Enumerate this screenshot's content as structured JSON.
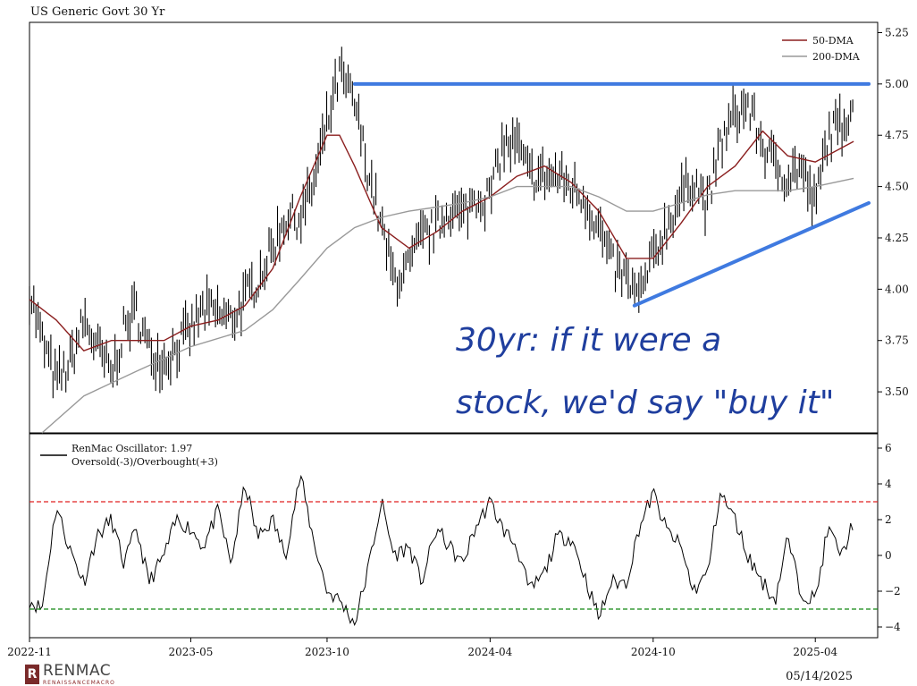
{
  "header": {
    "title": "US Generic Govt 30 Yr"
  },
  "footer": {
    "date": "05/14/2025",
    "logo_name": "RENMAC",
    "logo_sub": "RENAISSANCEMACRO",
    "logo_mark": "R"
  },
  "annotation": {
    "line1": "30yr: if it were a",
    "line2": "stock, we'd say \"buy it\""
  },
  "colors": {
    "price": "#000000",
    "dma50": "#8b1f1f",
    "dma200": "#999999",
    "resistance": "#3f7ae0",
    "support": "#3f7ae0",
    "oscillator": "#000000",
    "overbought": "#e02020",
    "oversold": "#118811",
    "annotation": "#1f3e9e"
  },
  "chart_data": [
    {
      "type": "line",
      "title": "US Generic Govt 30 Yr",
      "y_axis_side": "right",
      "ylim": [
        3.3,
        5.3
      ],
      "yticks": [
        "3.50",
        "3.75",
        "4.00",
        "4.25",
        "4.50",
        "4.75",
        "5.00",
        "5.25"
      ],
      "ytick_values": [
        3.5,
        3.75,
        4.0,
        4.25,
        4.5,
        4.75,
        5.0,
        5.25
      ],
      "legend": {
        "position": "top-right",
        "entries": [
          "50-DMA",
          "200-DMA"
        ]
      },
      "series": [
        {
          "style": "daily-bars",
          "dates": [
            "2022-11-01",
            "2022-11-15",
            "2022-12-01",
            "2022-12-15",
            "2023-01-01",
            "2023-01-15",
            "2023-02-01",
            "2023-02-15",
            "2023-03-01",
            "2023-03-15",
            "2023-04-01",
            "2023-04-15",
            "2023-05-01",
            "2023-05-15",
            "2023-06-01",
            "2023-06-15",
            "2023-07-01",
            "2023-07-15",
            "2023-08-01",
            "2023-08-15",
            "2023-09-01",
            "2023-09-15",
            "2023-10-01",
            "2023-10-15",
            "2023-11-01",
            "2023-11-15",
            "2023-12-01",
            "2023-12-15",
            "2024-01-01",
            "2024-01-15",
            "2024-02-01",
            "2024-02-15",
            "2024-03-01",
            "2024-03-15",
            "2024-04-01",
            "2024-04-15",
            "2024-05-01",
            "2024-05-15",
            "2024-06-01",
            "2024-06-15",
            "2024-07-01",
            "2024-07-15",
            "2024-08-01",
            "2024-08-15",
            "2024-09-01",
            "2024-09-15",
            "2024-10-01",
            "2024-10-15",
            "2024-11-01",
            "2024-11-15",
            "2024-12-01",
            "2024-12-15",
            "2025-01-01",
            "2025-01-15",
            "2025-02-01",
            "2025-02-15",
            "2025-03-01",
            "2025-03-15",
            "2025-04-01",
            "2025-04-15",
            "2025-05-01",
            "2025-05-14"
          ],
          "values": [
            4.0,
            3.75,
            3.55,
            3.62,
            3.85,
            3.72,
            3.58,
            3.8,
            3.9,
            3.7,
            3.65,
            3.72,
            3.8,
            3.9,
            3.88,
            3.85,
            3.95,
            4.05,
            4.2,
            4.35,
            4.35,
            4.5,
            4.8,
            5.05,
            4.9,
            4.6,
            4.3,
            4.05,
            4.1,
            4.25,
            4.3,
            4.4,
            4.35,
            4.45,
            4.45,
            4.7,
            4.7,
            4.55,
            4.55,
            4.55,
            4.5,
            4.45,
            4.3,
            4.12,
            4.05,
            3.95,
            4.15,
            4.3,
            4.45,
            4.55,
            4.4,
            4.7,
            4.85,
            4.9,
            4.7,
            4.6,
            4.55,
            4.6,
            4.4,
            4.75,
            4.8,
            4.92
          ]
        },
        {
          "name": "50-DMA",
          "dates": [
            "2022-11-01",
            "2022-12-01",
            "2023-01-01",
            "2023-02-01",
            "2023-03-01",
            "2023-04-01",
            "2023-05-01",
            "2023-06-01",
            "2023-07-01",
            "2023-08-01",
            "2023-09-01",
            "2023-10-01",
            "2023-10-15",
            "2023-11-01",
            "2023-12-01",
            "2024-01-01",
            "2024-02-01",
            "2024-03-01",
            "2024-04-01",
            "2024-05-01",
            "2024-06-01",
            "2024-07-01",
            "2024-08-01",
            "2024-09-01",
            "2024-10-01",
            "2024-11-01",
            "2024-12-01",
            "2025-01-01",
            "2025-02-01",
            "2025-03-01",
            "2025-04-01",
            "2025-05-14"
          ],
          "values": [
            3.95,
            3.85,
            3.7,
            3.75,
            3.75,
            3.75,
            3.82,
            3.85,
            3.92,
            4.1,
            4.45,
            4.75,
            4.75,
            4.6,
            4.3,
            4.2,
            4.28,
            4.38,
            4.45,
            4.55,
            4.6,
            4.52,
            4.38,
            4.15,
            4.15,
            4.32,
            4.5,
            4.6,
            4.77,
            4.65,
            4.62,
            4.72
          ]
        },
        {
          "name": "200-DMA",
          "dates": [
            "2022-11-15",
            "2023-01-01",
            "2023-03-01",
            "2023-05-01",
            "2023-07-01",
            "2023-08-01",
            "2023-09-01",
            "2023-10-01",
            "2023-11-01",
            "2023-12-01",
            "2024-01-01",
            "2024-02-01",
            "2024-03-01",
            "2024-04-01",
            "2024-05-01",
            "2024-06-01",
            "2024-07-01",
            "2024-08-01",
            "2024-09-01",
            "2024-10-01",
            "2024-11-01",
            "2024-12-01",
            "2025-01-01",
            "2025-02-01",
            "2025-03-01",
            "2025-04-01",
            "2025-05-14"
          ],
          "values": [
            3.3,
            3.48,
            3.6,
            3.72,
            3.8,
            3.9,
            4.05,
            4.2,
            4.3,
            4.35,
            4.38,
            4.4,
            4.42,
            4.45,
            4.5,
            4.5,
            4.5,
            4.45,
            4.38,
            4.38,
            4.42,
            4.46,
            4.48,
            4.48,
            4.48,
            4.5,
            4.54
          ]
        }
      ],
      "annotations": [
        {
          "kind": "resistance",
          "from": [
            "2023-11-01",
            5.0
          ],
          "to": [
            "2025-05-31",
            5.0
          ]
        },
        {
          "kind": "support",
          "from": [
            "2024-09-10",
            3.92
          ],
          "to": [
            "2025-05-31",
            4.42
          ]
        }
      ]
    },
    {
      "type": "line",
      "y_axis_side": "right",
      "ylim": [
        -4.6,
        6.8
      ],
      "yticks": [
        "−4",
        "−2",
        "0",
        "2",
        "4",
        "6"
      ],
      "ytick_values": [
        -4,
        -2,
        0,
        2,
        4,
        6
      ],
      "legend": {
        "position": "top-left",
        "entries": [
          "RenMac Oscillator: 1.97",
          "Oversold(-3)/Overbought(+3)"
        ]
      },
      "hlines": [
        {
          "name": "Overbought",
          "value": 3,
          "style": "dashed"
        },
        {
          "name": "Oversold",
          "value": -3,
          "style": "dashed"
        }
      ],
      "series": [
        {
          "name": "RenMac Oscillator",
          "dates": [
            "2022-11-01",
            "2022-11-15",
            "2022-12-01",
            "2022-12-15",
            "2023-01-01",
            "2023-01-15",
            "2023-02-01",
            "2023-02-15",
            "2023-03-01",
            "2023-03-15",
            "2023-04-01",
            "2023-04-15",
            "2023-05-01",
            "2023-05-15",
            "2023-06-01",
            "2023-06-15",
            "2023-07-01",
            "2023-07-15",
            "2023-08-01",
            "2023-08-15",
            "2023-09-01",
            "2023-09-15",
            "2023-10-01",
            "2023-10-15",
            "2023-11-01",
            "2023-11-15",
            "2023-12-01",
            "2023-12-15",
            "2024-01-01",
            "2024-01-15",
            "2024-02-01",
            "2024-02-15",
            "2024-03-01",
            "2024-03-15",
            "2024-04-01",
            "2024-04-15",
            "2024-05-01",
            "2024-05-15",
            "2024-06-01",
            "2024-06-15",
            "2024-07-01",
            "2024-07-15",
            "2024-08-01",
            "2024-08-15",
            "2024-09-01",
            "2024-09-15",
            "2024-10-01",
            "2024-10-15",
            "2024-11-01",
            "2024-11-15",
            "2024-12-01",
            "2024-12-15",
            "2025-01-01",
            "2025-01-15",
            "2025-02-01",
            "2025-02-15",
            "2025-03-01",
            "2025-03-15",
            "2025-04-01",
            "2025-04-15",
            "2025-05-01",
            "2025-05-14"
          ],
          "values": [
            -2.5,
            -3,
            2.8,
            0.5,
            -1.5,
            1,
            2,
            -0.5,
            1.5,
            -1.5,
            0,
            2,
            1.5,
            0.5,
            2.5,
            -0.5,
            4,
            1,
            2,
            0,
            4.5,
            1,
            -2,
            -2.5,
            -3.8,
            -1,
            3,
            0,
            0.5,
            -1.5,
            1.5,
            0.5,
            -0.5,
            1.5,
            3,
            1.5,
            0.5,
            -2,
            -1,
            1,
            1,
            -1,
            -3.5,
            -1.5,
            -1.5,
            1.5,
            3.5,
            1.5,
            0.5,
            -2,
            -1,
            3.5,
            2,
            0,
            -1.5,
            -2.5,
            1,
            -2,
            -2.5,
            1.5,
            0,
            1.97
          ]
        }
      ]
    }
  ],
  "x_axis": {
    "ticks": [
      "2022-11",
      "2023-05",
      "2023-10",
      "2024-04",
      "2024-10",
      "2025-04"
    ]
  }
}
